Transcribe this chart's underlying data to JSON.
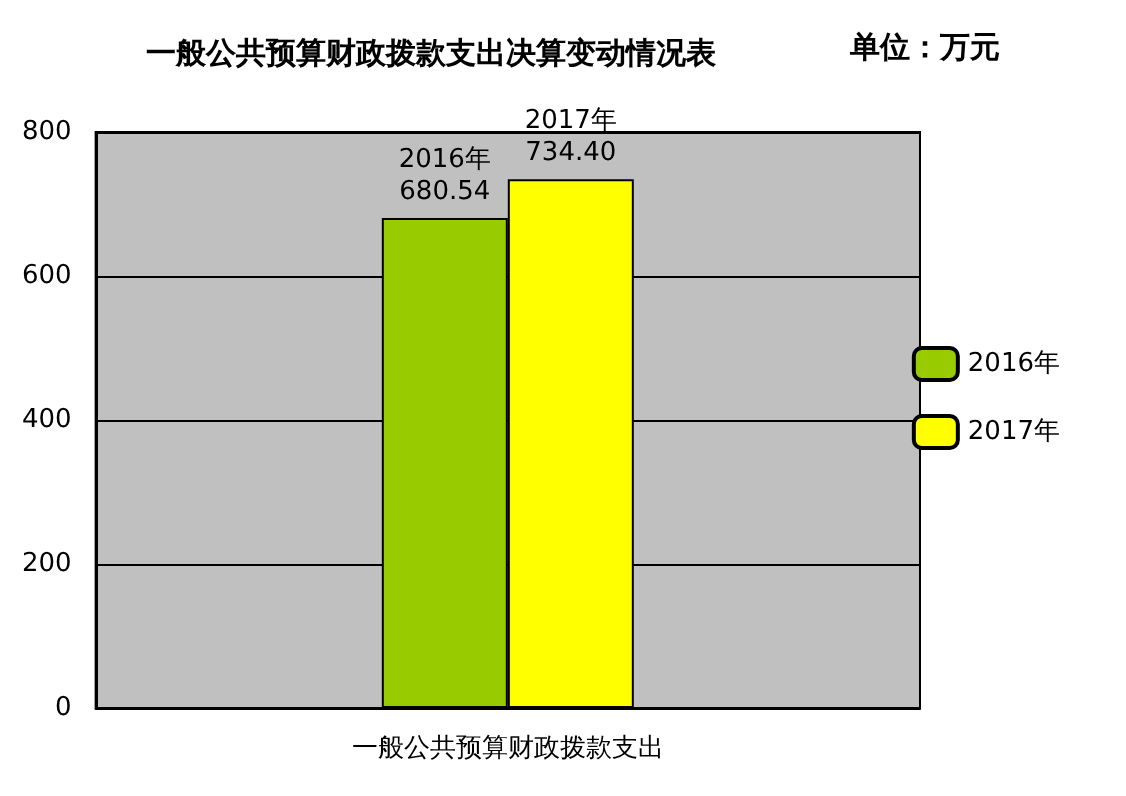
{
  "chart_data": {
    "type": "bar",
    "title": "一般公共预算财政拨款支出决算变动情况表",
    "annotations": [
      "单位：万元"
    ],
    "categories": [
      "一般公共预算财政拨款支出"
    ],
    "series": [
      {
        "name": "2016年",
        "color": "#99cc00",
        "values": [
          680.54
        ],
        "value_labels": [
          "680.54"
        ]
      },
      {
        "name": "2017年",
        "color": "#ffff00",
        "values": [
          734.4
        ],
        "value_labels": [
          "734.40"
        ]
      }
    ],
    "ylim": [
      0,
      800
    ],
    "yticks": [
      0,
      200,
      400,
      600,
      800
    ],
    "grid": "y",
    "legend": "right"
  }
}
